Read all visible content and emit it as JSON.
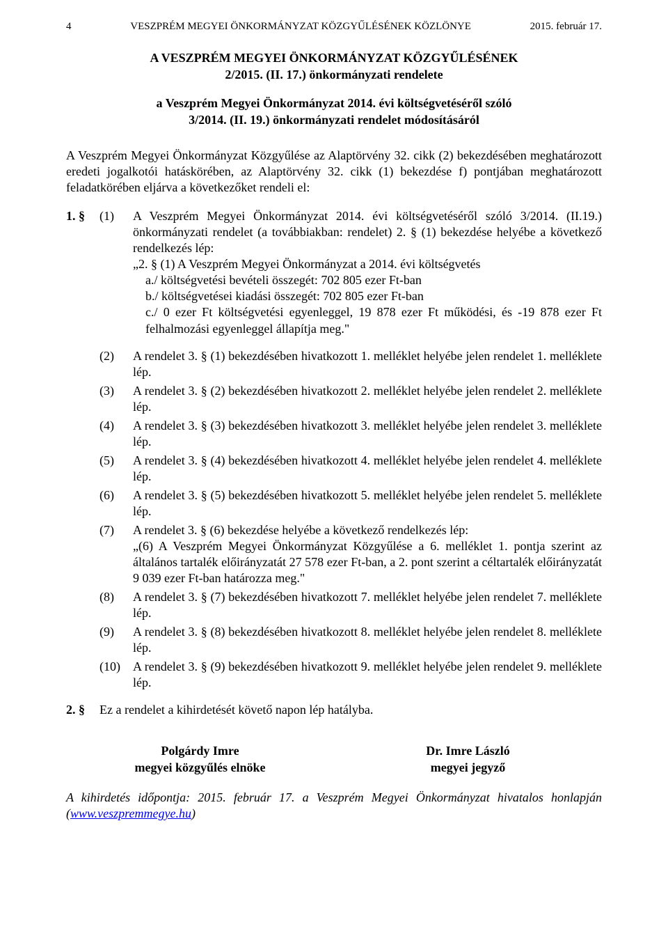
{
  "header": {
    "page_no": "4",
    "running_title": "VESZPRÉM MEGYEI ÖNKORMÁNYZAT KÖZGYŰLÉSÉNEK KÖZLÖNYE",
    "date": "2015. február 17."
  },
  "title": {
    "line1": "A VESZPRÉM MEGYEI ÖNKORMÁNYZAT KÖZGYŰLÉSÉNEK",
    "line2": "2/2015. (II. 17.) önkormányzati rendelete",
    "line3": "a Veszprém Megyei Önkormányzat 2014. évi költségvetéséről szóló",
    "line4": "3/2014. (II. 19.) önkormányzati rendelet módosításáról"
  },
  "preamble": "A Veszprém Megyei Önkormányzat Közgyűlése az Alaptörvény 32. cikk (2) bekezdésében meghatározott eredeti jogalkotói hatáskörében, az Alaptörvény 32. cikk (1) bekezdése f) pontjában meghatározott feladatkörében eljárva a következőket rendeli el:",
  "section1": {
    "num": "1. §",
    "para1_num": "(1)",
    "para1_intro": "A Veszprém Megyei Önkormányzat 2014. évi költségvetéséről szóló 3/2014. (II.19.) önkormányzati rendelet (a továbbiakban: rendelet) 2. § (1) bekezdése helyébe a következő rendelkezés lép:",
    "para1_quote_line1": "„2. § (1) A Veszprém Megyei Önkormányzat a 2014. évi költségvetés",
    "para1_a": "a./ költségvetési bevételi összegét: 702 805 ezer Ft-ban",
    "para1_b": "b./ költségvetései kiadási összegét: 702 805 ezer Ft-ban",
    "para1_c": "c./ 0 ezer Ft költségvetési egyenleggel, 19 878 ezer Ft működési, és -19 878 ezer Ft felhalmozási egyenleggel állapítja meg.\"",
    "paras": [
      {
        "n": "(2)",
        "t": "A rendelet 3. § (1) bekezdésében hivatkozott 1. melléklet helyébe jelen rendelet 1. melléklete lép."
      },
      {
        "n": "(3)",
        "t": "A rendelet 3. § (2) bekezdésében hivatkozott 2. melléklet helyébe jelen rendelet 2. melléklete lép."
      },
      {
        "n": "(4)",
        "t": "A rendelet 3. § (3) bekezdésében hivatkozott 3. melléklet helyébe jelen rendelet 3. melléklete lép."
      },
      {
        "n": "(5)",
        "t": "A rendelet 3. § (4) bekezdésében hivatkozott 4. melléklet helyébe jelen rendelet 4. melléklete lép."
      },
      {
        "n": "(6)",
        "t": "A rendelet 3. § (5) bekezdésében hivatkozott 5. melléklet helyébe jelen rendelet 5. melléklete lép."
      },
      {
        "n": "(7)",
        "t": "A rendelet 3. § (6) bekezdése helyébe a következő rendelkezés lép:\n„(6) A Veszprém Megyei Önkormányzat Közgyűlése a 6. melléklet 1. pontja szerint az általános tartalék előirányzatát 27 578 ezer Ft-ban, a 2. pont szerint a céltartalék előirányzatát 9 039 ezer Ft-ban határozza meg.\""
      },
      {
        "n": "(8)",
        "t": "A rendelet 3. § (7) bekezdésében hivatkozott 7. melléklet helyébe jelen rendelet 7. melléklete lép."
      },
      {
        "n": "(9)",
        "t": "A rendelet 3. § (8) bekezdésében hivatkozott 8. melléklet helyébe jelen rendelet 8. melléklete lép."
      },
      {
        "n": "(10)",
        "t": "A rendelet 3. § (9) bekezdésében hivatkozott 9. melléklet helyébe jelen rendelet 9. melléklete lép."
      }
    ]
  },
  "section2": {
    "num": "2. §",
    "body": "Ez a rendelet a kihirdetését követő napon lép hatályba."
  },
  "signatures": {
    "left_name": "Polgárdy Imre",
    "left_title": "megyei közgyűlés elnöke",
    "right_name": "Dr. Imre László",
    "right_title": "megyei jegyző"
  },
  "kihirdetes": {
    "prefix": "A kihirdetés időpontja: 2015. február 17. a Veszprém Megyei Önkormányzat hivatalos honlapján (",
    "link_text": "www.veszpremmegye.hu",
    "suffix": ")"
  }
}
